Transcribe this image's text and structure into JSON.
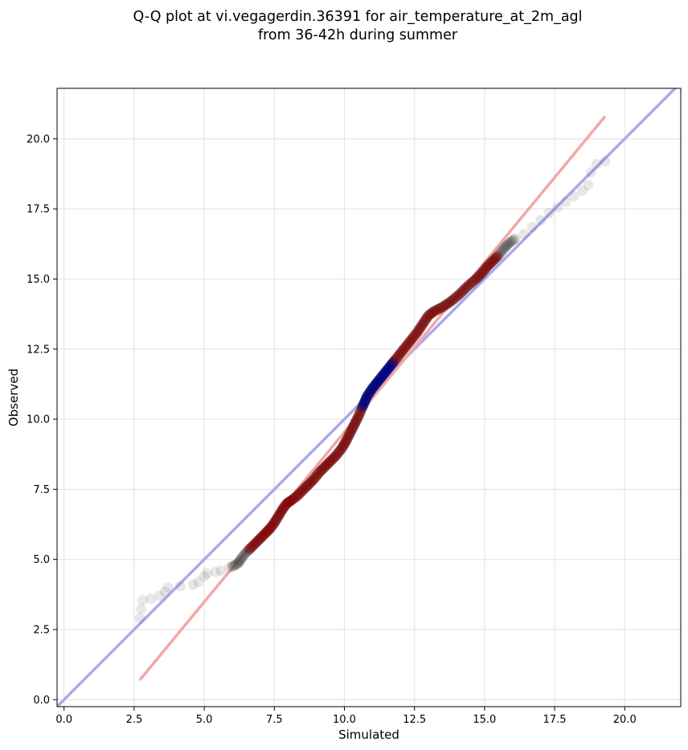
{
  "chart_data": {
    "type": "scatter",
    "title_line1": "Q-Q plot at vi.vegagerdin.36391 for air_temperature_at_2m_agl",
    "title_line2": "from 36-42h during summer",
    "xlabel": "Simulated",
    "ylabel": "Observed",
    "xlim": [
      -0.25,
      22.0
    ],
    "ylim": [
      -0.25,
      21.8
    ],
    "x_ticks": [
      0.0,
      2.5,
      5.0,
      7.5,
      10.0,
      12.5,
      15.0,
      17.5,
      20.0
    ],
    "y_ticks": [
      0.0,
      2.5,
      5.0,
      7.5,
      10.0,
      12.5,
      15.0,
      17.5,
      20.0
    ],
    "grid": true,
    "colors": {
      "points": "#404040",
      "identity_line": "#aaaaf0",
      "fit_line": "#f4a6a6",
      "dense_red": "#8b0000",
      "dense_blue": "#000080"
    },
    "identity_line": {
      "from": [
        -0.25,
        -0.25
      ],
      "to": [
        22.0,
        22.0
      ]
    },
    "fit_line": {
      "from": [
        2.7,
        0.7
      ],
      "to": [
        19.3,
        20.8
      ]
    },
    "quantiles": [
      [
        2.7,
        2.9
      ],
      [
        2.8,
        3.55
      ],
      [
        3.1,
        3.6
      ],
      [
        3.4,
        3.7
      ],
      [
        3.6,
        3.85
      ],
      [
        3.7,
        4.0
      ],
      [
        4.6,
        4.1
      ],
      [
        4.8,
        4.2
      ],
      [
        5.0,
        4.4
      ],
      [
        5.1,
        4.5
      ],
      [
        5.4,
        4.55
      ],
      [
        5.6,
        4.6
      ],
      [
        5.9,
        4.7
      ],
      [
        6.0,
        4.75
      ],
      [
        6.2,
        4.85
      ],
      [
        6.3,
        5.0
      ],
      [
        6.45,
        5.2
      ],
      [
        6.6,
        5.35
      ],
      [
        6.8,
        5.55
      ],
      [
        7.0,
        5.75
      ],
      [
        7.2,
        5.95
      ],
      [
        7.35,
        6.1
      ],
      [
        7.5,
        6.3
      ],
      [
        7.65,
        6.55
      ],
      [
        7.8,
        6.8
      ],
      [
        7.95,
        7.0
      ],
      [
        8.1,
        7.1
      ],
      [
        8.3,
        7.25
      ],
      [
        8.5,
        7.45
      ],
      [
        8.7,
        7.65
      ],
      [
        8.9,
        7.85
      ],
      [
        9.1,
        8.1
      ],
      [
        9.3,
        8.3
      ],
      [
        9.5,
        8.5
      ],
      [
        9.7,
        8.7
      ],
      [
        9.9,
        8.95
      ],
      [
        10.05,
        9.2
      ],
      [
        10.2,
        9.5
      ],
      [
        10.35,
        9.8
      ],
      [
        10.5,
        10.1
      ],
      [
        10.65,
        10.45
      ],
      [
        10.8,
        10.8
      ],
      [
        11.0,
        11.1
      ],
      [
        11.2,
        11.35
      ],
      [
        11.4,
        11.6
      ],
      [
        11.6,
        11.85
      ],
      [
        11.8,
        12.1
      ],
      [
        12.0,
        12.35
      ],
      [
        12.2,
        12.6
      ],
      [
        12.4,
        12.85
      ],
      [
        12.6,
        13.1
      ],
      [
        12.8,
        13.4
      ],
      [
        13.0,
        13.7
      ],
      [
        13.2,
        13.85
      ],
      [
        13.5,
        14.0
      ],
      [
        13.8,
        14.2
      ],
      [
        14.1,
        14.45
      ],
      [
        14.4,
        14.75
      ],
      [
        14.7,
        15.0
      ],
      [
        14.9,
        15.2
      ],
      [
        15.1,
        15.45
      ],
      [
        15.3,
        15.65
      ],
      [
        15.5,
        15.85
      ],
      [
        15.7,
        16.1
      ],
      [
        15.9,
        16.3
      ],
      [
        16.1,
        16.45
      ],
      [
        16.4,
        16.6
      ],
      [
        16.7,
        16.85
      ],
      [
        17.0,
        17.1
      ],
      [
        17.3,
        17.35
      ],
      [
        17.6,
        17.55
      ],
      [
        17.9,
        17.75
      ],
      [
        18.2,
        17.95
      ],
      [
        18.5,
        18.15
      ],
      [
        18.7,
        18.35
      ],
      [
        18.8,
        18.8
      ],
      [
        19.0,
        19.1
      ],
      [
        19.3,
        19.2
      ]
    ]
  }
}
